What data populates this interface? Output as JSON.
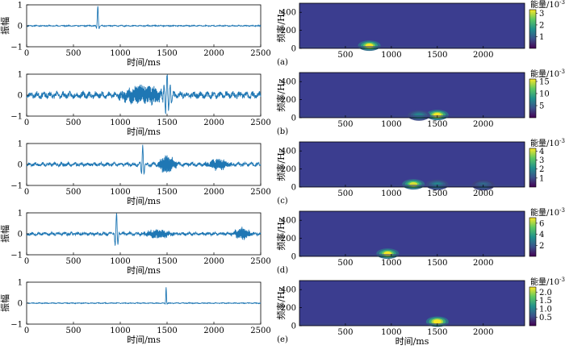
{
  "colors": {
    "signal": "#1f77b4",
    "spectrogram_bg": "#3b3d8f",
    "colormap": [
      "#440154",
      "#3b528b",
      "#21918c",
      "#5ec962",
      "#fde725"
    ]
  },
  "chart_data": [
    {
      "type": "line",
      "panel": "a-left",
      "xlabel": "时间/ms",
      "ylabel": "振幅",
      "xlim": [
        0,
        2500
      ],
      "ylim": [
        -1,
        1
      ],
      "xticks": [
        "0",
        "500",
        "1000",
        "1500",
        "2000",
        "2500"
      ],
      "yticks": [
        "-1",
        "0",
        "1"
      ],
      "noise_level": 0.02,
      "seed": 11,
      "events": [
        {
          "t": 760,
          "amp": 0.95,
          "width": 8,
          "freq": 0.025
        }
      ]
    },
    {
      "type": "heatmap",
      "panel": "a-right",
      "label": "(a)",
      "xlabel": "",
      "ylabel": "频率/Hz",
      "xlim": [
        0,
        2450
      ],
      "ylim": [
        0,
        500
      ],
      "xticks": [
        "500",
        "1000",
        "1500",
        "2000"
      ],
      "yticks": [
        "0",
        "200",
        "400"
      ],
      "colorbar_title": "能量/10",
      "colorbar_exp": "-3",
      "colorbar_ticks": [
        "1",
        "2",
        "3"
      ],
      "colorbar_range": [
        0,
        3.3
      ],
      "blobs": [
        {
          "t": 760,
          "f": 30,
          "intensity": 0.85
        }
      ]
    },
    {
      "type": "line",
      "panel": "b-left",
      "xlabel": "时间/ms",
      "ylabel": "",
      "xlim": [
        0,
        2500
      ],
      "ylim": [
        -1,
        1
      ],
      "xticks": [
        "0",
        "500",
        "1000",
        "1500",
        "2000",
        "2500"
      ],
      "yticks": [
        "-1",
        "0",
        "1"
      ],
      "noise_level": 0.12,
      "seed": 23,
      "events": [
        {
          "t": 1500,
          "amp": 0.95,
          "width": 30,
          "freq": 0.03
        },
        {
          "t": 1300,
          "amp": 0.35,
          "width": 120,
          "freq": 0.06
        },
        {
          "t": 1150,
          "amp": 0.25,
          "width": 120,
          "freq": 0.06
        }
      ]
    },
    {
      "type": "heatmap",
      "panel": "b-right",
      "label": "(b)",
      "xlabel": "",
      "ylabel": "频率/Hz",
      "xlim": [
        0,
        2450
      ],
      "ylim": [
        0,
        500
      ],
      "xticks": [
        "500",
        "1000",
        "1500",
        "2000"
      ],
      "yticks": [
        "0",
        "200",
        "400"
      ],
      "colorbar_title": "能量/10",
      "colorbar_exp": "-3",
      "colorbar_ticks": [
        "5",
        "10",
        "15"
      ],
      "colorbar_range": [
        0,
        16
      ],
      "blobs": [
        {
          "t": 1500,
          "f": 30,
          "intensity": 0.9
        },
        {
          "t": 1300,
          "f": 25,
          "intensity": 0.3
        }
      ]
    },
    {
      "type": "line",
      "panel": "c-left",
      "xlabel": "时间/ms",
      "ylabel": "",
      "xlim": [
        0,
        2500
      ],
      "ylim": [
        -1,
        1
      ],
      "xticks": [
        "0",
        "500",
        "1000",
        "1500",
        "2000",
        "2500"
      ],
      "yticks": [
        "-1",
        "0",
        "1"
      ],
      "noise_level": 0.07,
      "seed": 37,
      "events": [
        {
          "t": 1240,
          "amp": 0.95,
          "width": 12,
          "freq": 0.03
        },
        {
          "t": 1500,
          "amp": 0.4,
          "width": 60,
          "freq": 0.05
        },
        {
          "t": 2050,
          "amp": 0.25,
          "width": 80,
          "freq": 0.05
        }
      ]
    },
    {
      "type": "heatmap",
      "panel": "c-right",
      "label": "(c)",
      "xlabel": "",
      "ylabel": "频率/Hz",
      "xlim": [
        0,
        2450
      ],
      "ylim": [
        0,
        500
      ],
      "xticks": [
        "500",
        "1000",
        "1500",
        "2000"
      ],
      "yticks": [
        "0",
        "200",
        "400"
      ],
      "colorbar_title": "能量/10",
      "colorbar_exp": "-3",
      "colorbar_ticks": [
        "1",
        "2",
        "3",
        "4"
      ],
      "colorbar_range": [
        0,
        4.3
      ],
      "blobs": [
        {
          "t": 1240,
          "f": 30,
          "intensity": 0.8
        },
        {
          "t": 1500,
          "f": 25,
          "intensity": 0.3
        },
        {
          "t": 2000,
          "f": 20,
          "intensity": 0.2
        }
      ]
    },
    {
      "type": "line",
      "panel": "d-left",
      "xlabel": "时间/ms",
      "ylabel": "振幅",
      "xlim": [
        0,
        2500
      ],
      "ylim": [
        -1,
        1
      ],
      "xticks": [
        "0",
        "500",
        "1000",
        "1500",
        "2000",
        "2500"
      ],
      "yticks": [
        "-1",
        "0",
        "1"
      ],
      "noise_level": 0.06,
      "seed": 53,
      "events": [
        {
          "t": 960,
          "amp": 0.95,
          "width": 14,
          "freq": 0.03
        },
        {
          "t": 1400,
          "amp": 0.2,
          "width": 100,
          "freq": 0.05
        },
        {
          "t": 2300,
          "amp": 0.25,
          "width": 60,
          "freq": 0.05
        }
      ]
    },
    {
      "type": "heatmap",
      "panel": "d-right",
      "label": "(d)",
      "xlabel": "",
      "ylabel": "频率/Hz",
      "xlim": [
        0,
        2450
      ],
      "ylim": [
        0,
        500
      ],
      "xticks": [
        "500",
        "1000",
        "1500",
        "2000"
      ],
      "yticks": [
        "0",
        "200",
        "400"
      ],
      "colorbar_title": "能量/10",
      "colorbar_exp": "-3",
      "colorbar_ticks": [
        "2",
        "4",
        "6"
      ],
      "colorbar_range": [
        0,
        7
      ],
      "blobs": [
        {
          "t": 960,
          "f": 30,
          "intensity": 0.85
        }
      ]
    },
    {
      "type": "line",
      "panel": "e-left",
      "xlabel": "时间/ms",
      "ylabel": "振幅",
      "xlim": [
        0,
        2500
      ],
      "ylim": [
        -1,
        1
      ],
      "xticks": [
        "0",
        "500",
        "1000",
        "1500",
        "2000",
        "2500"
      ],
      "yticks": [
        "-1",
        "0",
        "1"
      ],
      "noise_level": 0.015,
      "seed": 71,
      "events": [
        {
          "t": 1490,
          "amp": 0.75,
          "width": 5,
          "freq": 0.03
        }
      ]
    },
    {
      "type": "heatmap",
      "panel": "e-right",
      "label": "(e)",
      "xlabel": "时间/ms",
      "ylabel": "频率/Hz",
      "xlim": [
        0,
        2450
      ],
      "ylim": [
        0,
        500
      ],
      "xticks": [
        "500",
        "1000",
        "1500",
        "2000"
      ],
      "yticks": [
        "0",
        "200",
        "400"
      ],
      "colorbar_title": "能量/10",
      "colorbar_exp": "-3",
      "colorbar_ticks": [
        "0.5",
        "1.0",
        "1.5",
        "2.0"
      ],
      "colorbar_range": [
        0,
        2.3
      ],
      "blobs": [
        {
          "t": 1500,
          "f": 45,
          "intensity": 0.95
        }
      ]
    }
  ]
}
